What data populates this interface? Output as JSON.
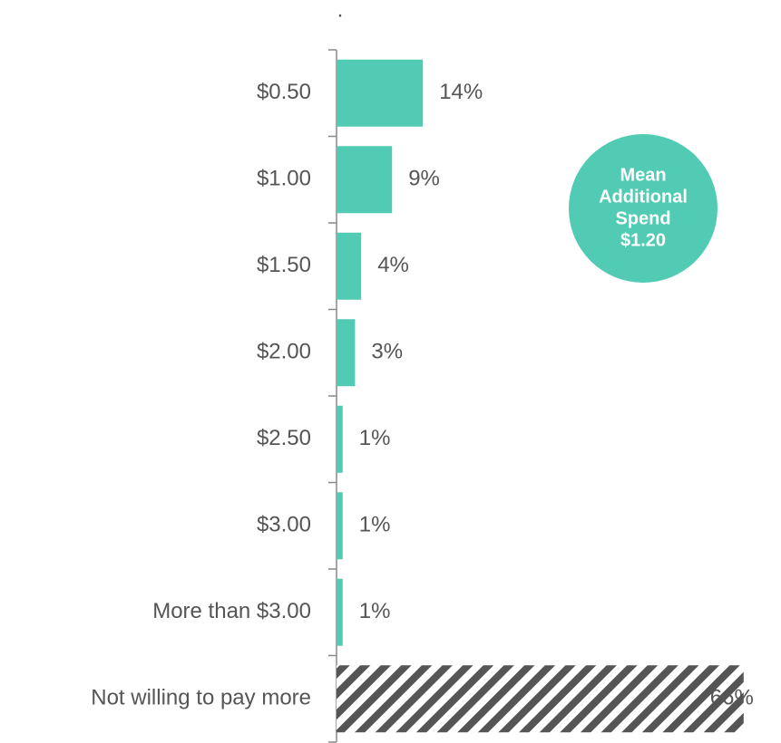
{
  "chart_data": {
    "type": "bar",
    "orientation": "horizontal",
    "title": ".",
    "categories": [
      "$0.50",
      "$1.00",
      "$1.50",
      "$2.00",
      "$2.50",
      "$3.00",
      "More than $3.00",
      "Not willing to pay more"
    ],
    "values": [
      14,
      9,
      4,
      3,
      1,
      1,
      1,
      66
    ],
    "value_labels": [
      "14%",
      "9%",
      "4%",
      "3%",
      "1%",
      "1%",
      "1%",
      "66%"
    ],
    "bar_styles": [
      "solid",
      "solid",
      "solid",
      "solid",
      "solid",
      "solid",
      "solid",
      "hatch"
    ],
    "color": "#52cbb5",
    "hatch_color": "#555555",
    "xlim": [
      0,
      70
    ],
    "annotation": [
      "Mean",
      "Additional",
      "Spend",
      "$1.20"
    ]
  }
}
